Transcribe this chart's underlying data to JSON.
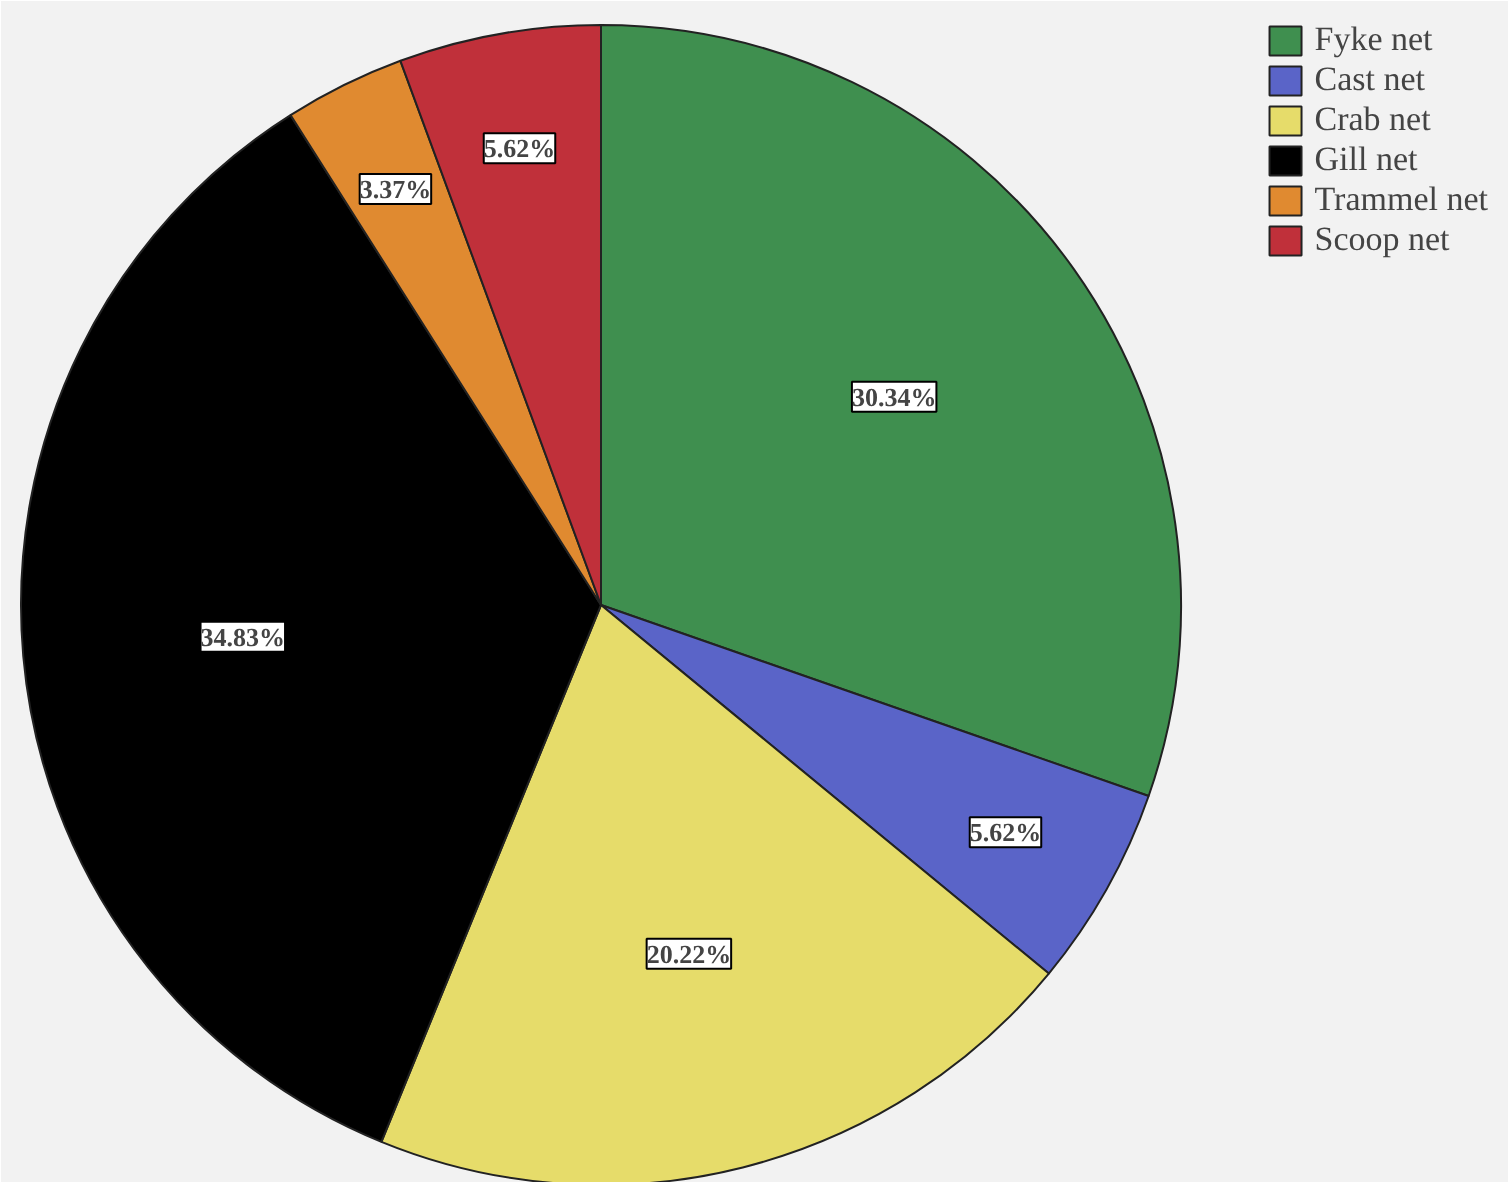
{
  "chart_data": {
    "type": "pie",
    "categories": [
      "Fyke net",
      "Cast net",
      "Crab net",
      "Gill net",
      "Trammel net",
      "Scoop net"
    ],
    "values": [
      30.34,
      5.62,
      20.22,
      34.83,
      3.37,
      5.62
    ],
    "colors": [
      "#3f8f4f",
      "#5a64c8",
      "#e6dc6a",
      "#000000",
      "#e08a30",
      "#c0303a"
    ],
    "value_labels": [
      "30.34%",
      "5.62%",
      "20.22%",
      "34.83%",
      "3.37%",
      "5.62%"
    ],
    "legend": "top right"
  }
}
